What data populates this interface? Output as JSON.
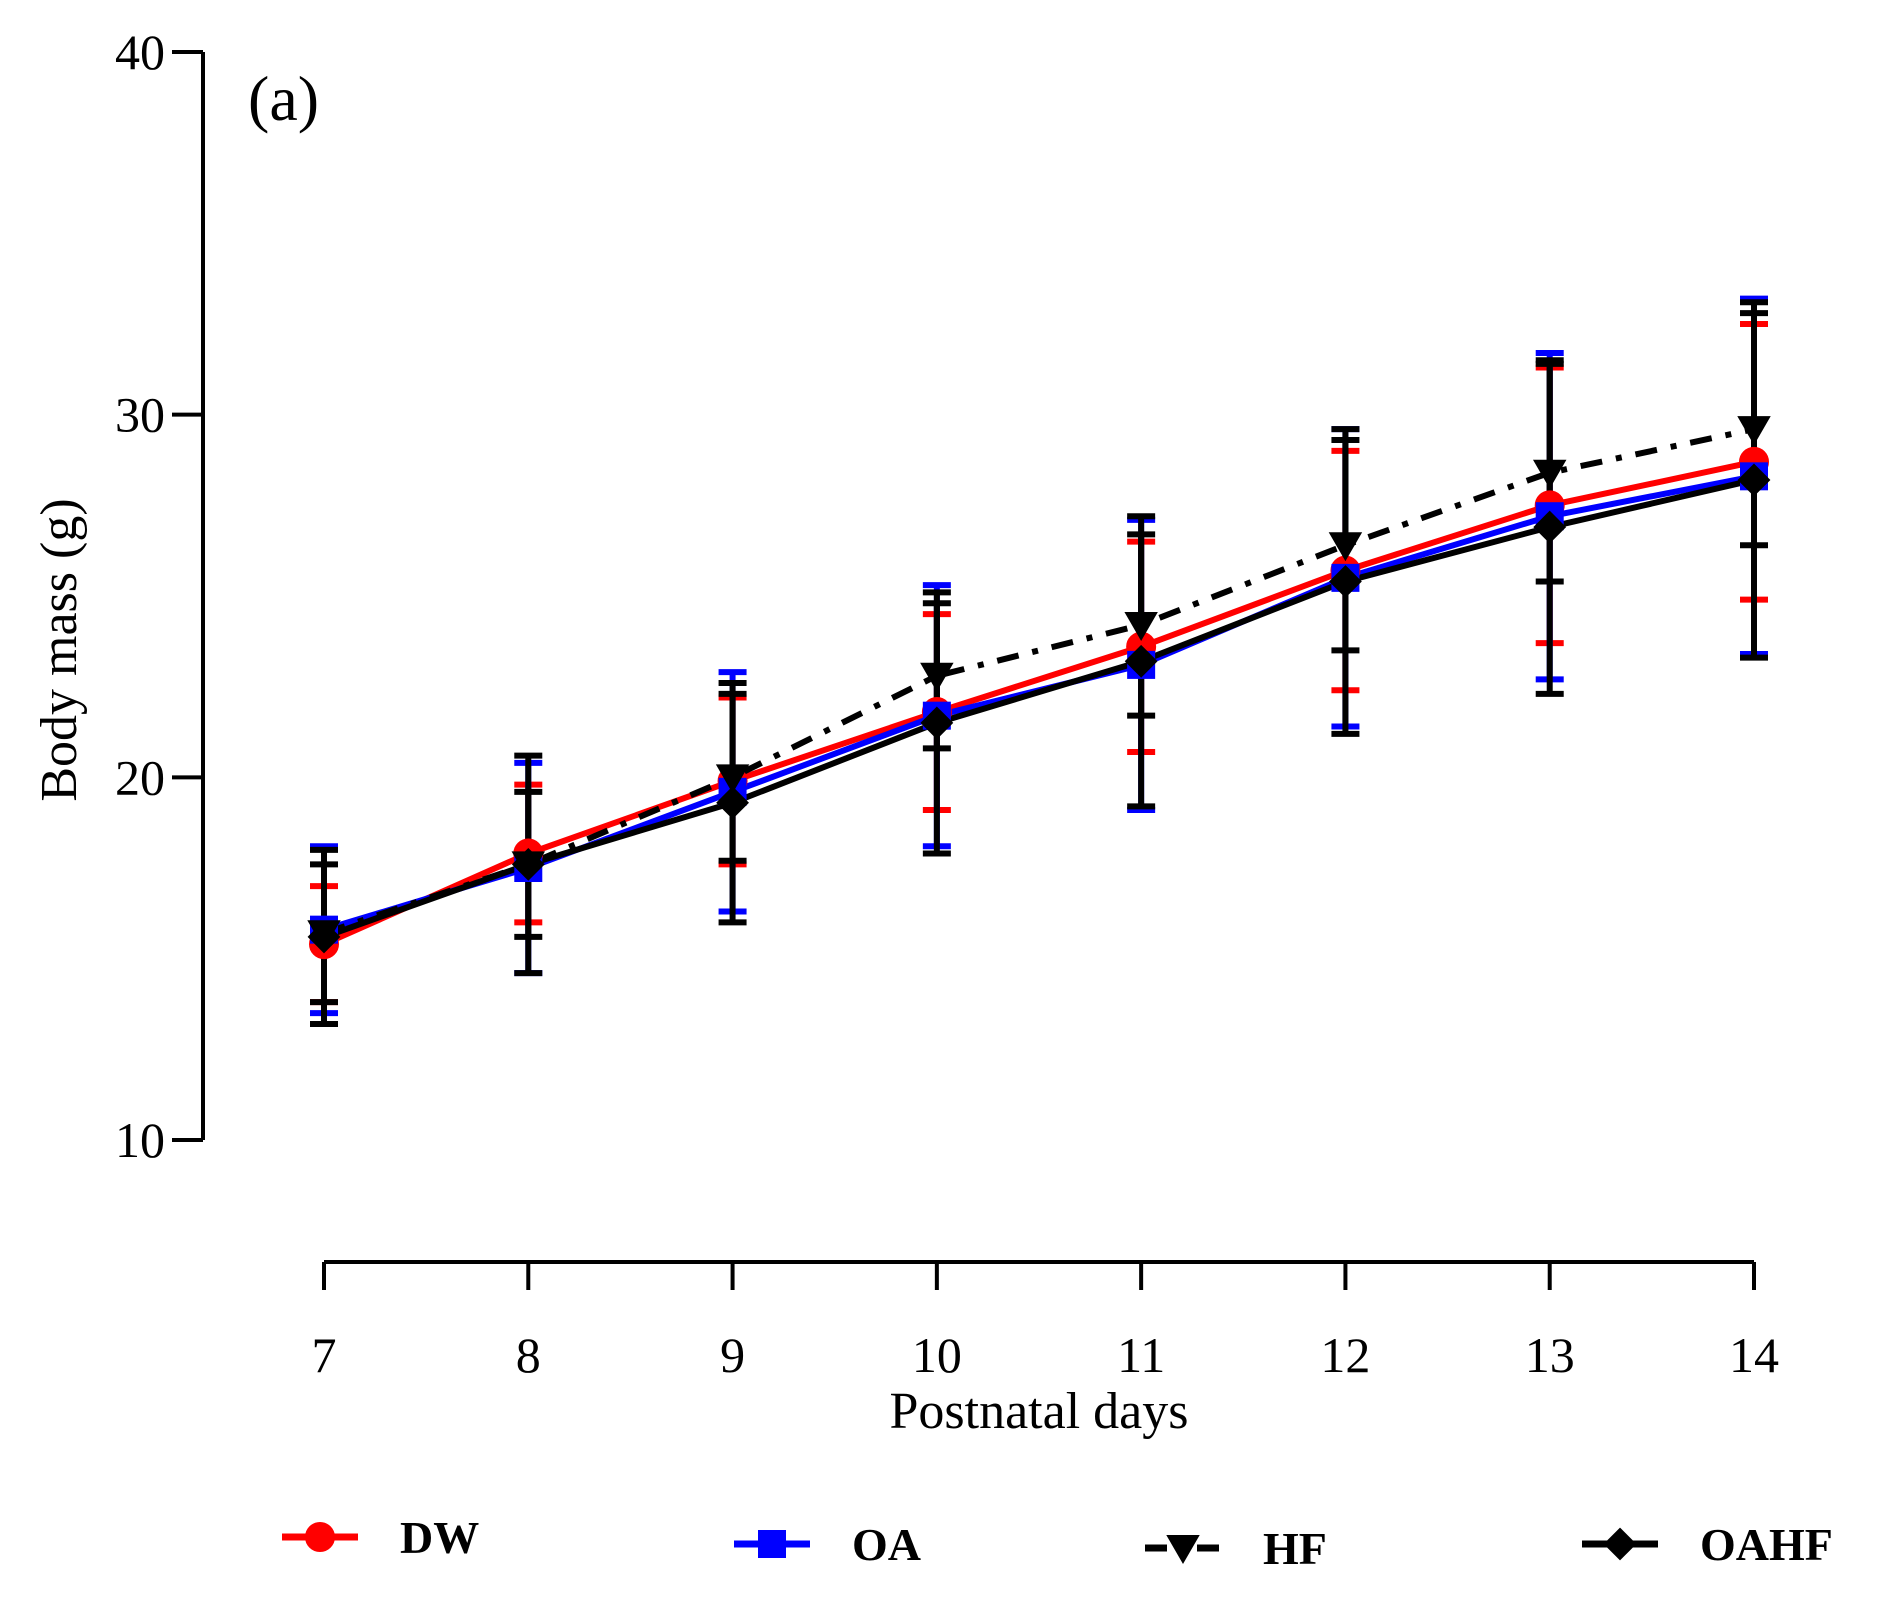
{
  "chart_data": {
    "type": "line",
    "panel_label": "(a)",
    "xlabel": "Postnatal days",
    "ylabel": "Body mass (g)",
    "x": [
      7,
      8,
      9,
      10,
      11,
      12,
      13,
      14
    ],
    "x_tick_labels": [
      "7",
      "8",
      "9",
      "10",
      "11",
      "12",
      "13",
      "14"
    ],
    "ylim": [
      10,
      40
    ],
    "y_ticks": [
      10,
      20,
      30,
      40
    ],
    "y_tick_labels": [
      "10",
      "20",
      "30",
      "40"
    ],
    "grid": false,
    "legend_position": "bottom",
    "series": [
      {
        "name": "DW",
        "color": "#ff0000",
        "marker": "circle",
        "line_style": "solid",
        "values": [
          15.4,
          17.9,
          19.9,
          21.8,
          23.6,
          25.7,
          27.5,
          28.7
        ],
        "error": [
          1.6,
          1.9,
          2.3,
          2.7,
          2.9,
          3.3,
          3.8,
          3.8
        ]
      },
      {
        "name": "OA",
        "color": "#0000ff",
        "marker": "square",
        "line_style": "solid",
        "values": [
          15.8,
          17.5,
          19.6,
          21.7,
          23.1,
          25.5,
          27.2,
          28.3
        ],
        "error": [
          2.3,
          2.9,
          3.3,
          3.6,
          4.0,
          4.1,
          4.5,
          4.9
        ]
      },
      {
        "name": "HF",
        "color": "#000000",
        "marker": "triangle-down",
        "line_style": "dashdot",
        "values": [
          15.7,
          17.6,
          20.0,
          22.8,
          24.2,
          26.4,
          28.4,
          29.6
        ],
        "error": [
          1.9,
          2.0,
          2.3,
          2.0,
          2.5,
          2.9,
          3.0,
          3.2
        ]
      },
      {
        "name": "OAHF",
        "color": "#000000",
        "marker": "diamond",
        "line_style": "solid",
        "values": [
          15.6,
          17.6,
          19.3,
          21.5,
          23.2,
          25.4,
          26.9,
          28.2
        ],
        "error": [
          2.4,
          3.0,
          3.3,
          3.6,
          4.0,
          4.2,
          4.6,
          4.9
        ]
      }
    ]
  }
}
